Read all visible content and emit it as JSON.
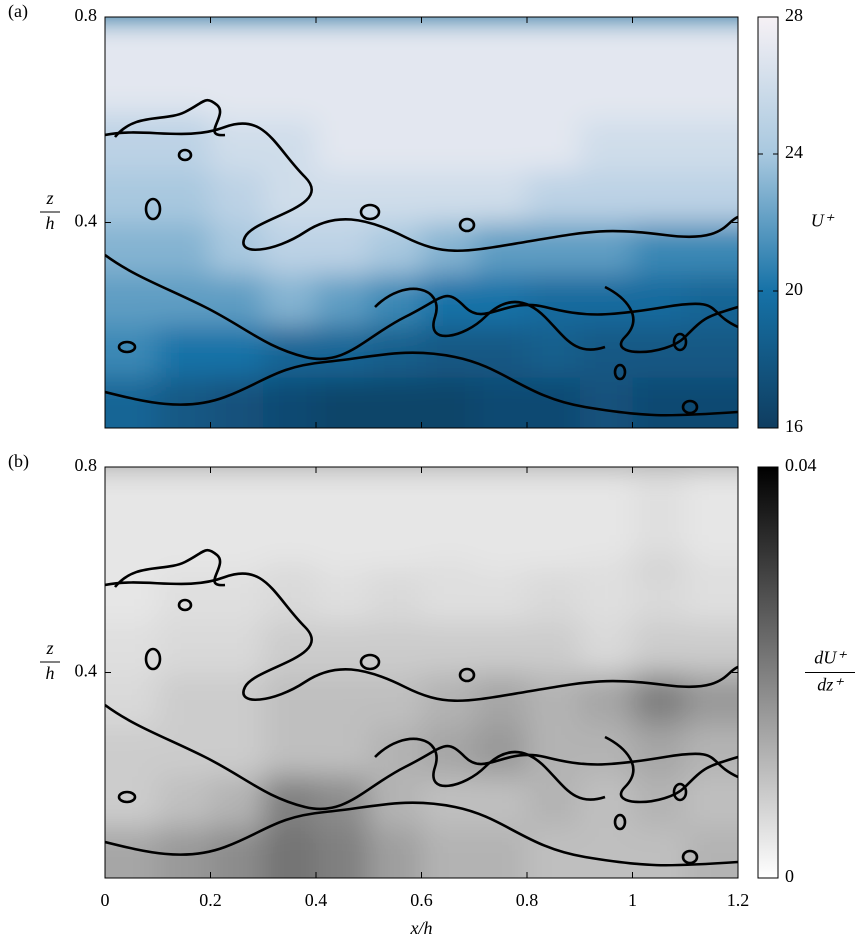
{
  "chart_data": [
    {
      "type": "heatmap",
      "label": "(a)",
      "x": [
        0.05,
        0.15,
        0.25,
        0.35,
        0.45,
        0.55,
        0.65,
        0.75,
        0.85,
        0.95,
        1.05,
        1.15
      ],
      "y": [
        0.05,
        0.15,
        0.25,
        0.35,
        0.45,
        0.55,
        0.65,
        0.75
      ],
      "z": [
        [
          19,
          18,
          17.5,
          17,
          16.5,
          16.5,
          16.5,
          17,
          17,
          17.5,
          17,
          17
        ],
        [
          21,
          20,
          20,
          19,
          19,
          18.5,
          18,
          18,
          18.5,
          18,
          18,
          18
        ],
        [
          22,
          22,
          22,
          23,
          22,
          21,
          20,
          20,
          19.5,
          19.5,
          19.5,
          19
        ],
        [
          23,
          23,
          24,
          25,
          25,
          24,
          23,
          22,
          22,
          22,
          21,
          21
        ],
        [
          24,
          24,
          25,
          26,
          26,
          26,
          26,
          26,
          25,
          25,
          25,
          25
        ],
        [
          25,
          25,
          26,
          26,
          27,
          27,
          27,
          27,
          27,
          26,
          26,
          26
        ],
        [
          26,
          26,
          27,
          27,
          27,
          27,
          27,
          27,
          27,
          27,
          27,
          27
        ],
        [
          27,
          27,
          27,
          27,
          27,
          27,
          27,
          27,
          27,
          27,
          27,
          27
        ]
      ],
      "xlim": [
        0,
        1.2
      ],
      "ylim": [
        0,
        0.8
      ],
      "xticks": [
        0,
        0.2,
        0.4,
        0.6,
        0.8,
        1,
        1.2
      ],
      "yticks": [
        0.4,
        0.8
      ],
      "show_xtick_labels": false,
      "ylabel_num": "z",
      "ylabel_den": "h",
      "colorbar_label": "U⁺",
      "clim": [
        16,
        28
      ],
      "cticks": [
        16,
        20,
        24,
        28
      ],
      "colormap": [
        "#0f3d60",
        "#1672a7",
        "#a8c8df",
        "#f6f1f5"
      ]
    },
    {
      "type": "heatmap",
      "label": "(b)",
      "x": [
        0.05,
        0.15,
        0.25,
        0.35,
        0.45,
        0.55,
        0.65,
        0.75,
        0.85,
        0.95,
        1.05,
        1.15
      ],
      "y": [
        0.05,
        0.15,
        0.25,
        0.35,
        0.45,
        0.55,
        0.65,
        0.75
      ],
      "z": [
        [
          0.014,
          0.016,
          0.018,
          0.022,
          0.02,
          0.015,
          0.012,
          0.012,
          0.01,
          0.01,
          0.01,
          0.012
        ],
        [
          0.008,
          0.01,
          0.012,
          0.02,
          0.018,
          0.012,
          0.01,
          0.01,
          0.012,
          0.01,
          0.012,
          0.01
        ],
        [
          0.008,
          0.008,
          0.008,
          0.01,
          0.01,
          0.012,
          0.014,
          0.016,
          0.012,
          0.012,
          0.014,
          0.012
        ],
        [
          0.006,
          0.008,
          0.008,
          0.01,
          0.01,
          0.01,
          0.012,
          0.014,
          0.012,
          0.014,
          0.02,
          0.016
        ],
        [
          0.005,
          0.006,
          0.006,
          0.008,
          0.008,
          0.008,
          0.008,
          0.008,
          0.008,
          0.006,
          0.008,
          0.008
        ],
        [
          0.004,
          0.005,
          0.005,
          0.006,
          0.005,
          0.006,
          0.005,
          0.005,
          0.006,
          0.005,
          0.006,
          0.005
        ],
        [
          0.004,
          0.004,
          0.004,
          0.005,
          0.004,
          0.004,
          0.005,
          0.004,
          0.004,
          0.005,
          0.008,
          0.005
        ],
        [
          0.004,
          0.004,
          0.004,
          0.004,
          0.004,
          0.004,
          0.004,
          0.004,
          0.004,
          0.004,
          0.005,
          0.004
        ]
      ],
      "xlim": [
        0,
        1.2
      ],
      "ylim": [
        0,
        0.8
      ],
      "xticks": [
        0,
        0.2,
        0.4,
        0.6,
        0.8,
        1,
        1.2
      ],
      "yticks": [
        0.4,
        0.8
      ],
      "show_xtick_labels": true,
      "xlabel": "x/h",
      "ylabel_num": "z",
      "ylabel_den": "h",
      "colorbar_label_num": "dU⁺",
      "colorbar_label_den": "dz⁺",
      "clim": [
        0,
        0.04
      ],
      "cticks": [
        0,
        0.04
      ],
      "colormap": [
        "#ffffff",
        "#000000"
      ]
    }
  ]
}
